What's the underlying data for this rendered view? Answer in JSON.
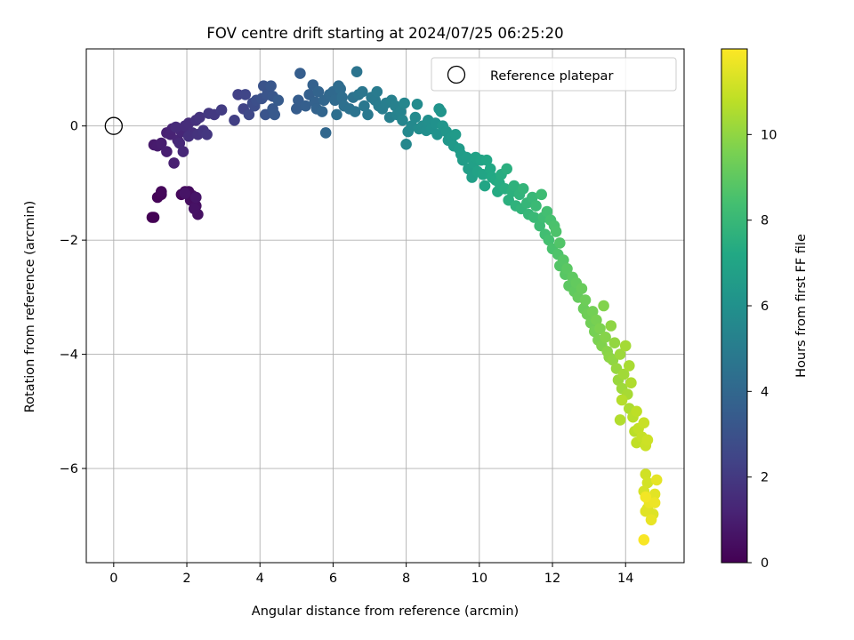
{
  "chart_data": {
    "type": "scatter",
    "title": "FOV centre drift starting at 2024/07/25 06:25:20",
    "xlabel": "Angular distance from reference (arcmin)",
    "ylabel": "Rotation from reference (arcmin)",
    "xlim": [
      -0.75,
      15.6
    ],
    "ylim": [
      -7.65,
      1.35
    ],
    "xticks": [
      0,
      2,
      4,
      6,
      8,
      10,
      12,
      14
    ],
    "yticks": [
      0,
      -2,
      -4,
      -6
    ],
    "xtick_labels": [
      "0",
      "2",
      "4",
      "6",
      "8",
      "10",
      "12",
      "14"
    ],
    "ytick_labels": [
      "0",
      "−2",
      "−4",
      "−6"
    ],
    "grid": true,
    "legend": {
      "placement": "top-right",
      "entries": [
        "Reference platepar"
      ]
    },
    "colormap": "viridis",
    "colors": {
      "vmin_color": "#440154",
      "vmax_color": "#fde725",
      "reference_marker": "#000000"
    },
    "reference": {
      "x": 0,
      "y": 0,
      "label": "Reference platepar"
    },
    "colorbar": {
      "label": "Hours from first FF file",
      "range": [
        0,
        12
      ],
      "ticks": [
        0,
        2,
        4,
        6,
        8,
        10
      ],
      "tick_labels": [
        "0",
        "2",
        "4",
        "6",
        "8",
        "10"
      ]
    },
    "series": [
      {
        "color_by": "Hours from first FF file",
        "points": [
          [
            1.05,
            -1.6,
            0.0
          ],
          [
            1.1,
            -1.6,
            0.05
          ],
          [
            1.2,
            -1.25,
            0.1
          ],
          [
            1.3,
            -1.2,
            0.15
          ],
          [
            1.3,
            -1.15,
            0.2
          ],
          [
            1.85,
            -1.2,
            0.25
          ],
          [
            1.95,
            -1.15,
            0.3
          ],
          [
            2.05,
            -1.15,
            0.35
          ],
          [
            2.15,
            -1.22,
            0.4
          ],
          [
            2.1,
            -1.3,
            0.45
          ],
          [
            2.25,
            -1.4,
            0.5
          ],
          [
            2.3,
            -1.55,
            0.55
          ],
          [
            2.2,
            -1.45,
            0.6
          ],
          [
            1.95,
            -1.18,
            0.65
          ],
          [
            2.25,
            -1.25,
            0.7
          ],
          [
            1.1,
            -0.33,
            0.85
          ],
          [
            1.2,
            -0.35,
            0.9
          ],
          [
            1.3,
            -0.3,
            0.95
          ],
          [
            1.45,
            -0.45,
            1.0
          ],
          [
            1.65,
            -0.65,
            1.05
          ],
          [
            1.45,
            -0.12,
            1.1
          ],
          [
            1.55,
            -0.15,
            1.15
          ],
          [
            1.6,
            -0.05,
            1.2
          ],
          [
            1.75,
            -0.25,
            1.25
          ],
          [
            1.85,
            -0.1,
            1.3
          ],
          [
            1.9,
            -0.45,
            1.35
          ],
          [
            1.8,
            -0.3,
            1.4
          ],
          [
            1.7,
            -0.02,
            1.45
          ],
          [
            1.95,
            0.0,
            1.5
          ],
          [
            2.05,
            0.05,
            1.55
          ],
          [
            2.15,
            -0.12,
            1.6
          ],
          [
            2.05,
            -0.18,
            1.65
          ],
          [
            2.25,
            0.1,
            1.7
          ],
          [
            2.3,
            -0.15,
            1.75
          ],
          [
            2.35,
            0.15,
            1.8
          ],
          [
            2.45,
            -0.08,
            1.85
          ],
          [
            2.55,
            -0.15,
            1.9
          ],
          [
            2.6,
            0.22,
            1.95
          ],
          [
            2.75,
            0.2,
            2.0
          ],
          [
            2.95,
            0.28,
            2.1
          ],
          [
            3.3,
            0.1,
            2.2
          ],
          [
            3.4,
            0.55,
            2.3
          ],
          [
            3.55,
            0.3,
            2.4
          ],
          [
            3.6,
            0.55,
            2.5
          ],
          [
            3.7,
            0.2,
            2.6
          ],
          [
            3.8,
            0.4,
            2.7
          ],
          [
            3.85,
            0.35,
            2.8
          ],
          [
            3.9,
            0.45,
            2.9
          ],
          [
            4.05,
            0.48,
            3.0
          ],
          [
            4.1,
            0.7,
            3.05
          ],
          [
            4.15,
            0.2,
            3.1
          ],
          [
            4.2,
            0.55,
            3.15
          ],
          [
            4.3,
            0.7,
            3.2
          ],
          [
            4.35,
            0.52,
            3.25
          ],
          [
            4.35,
            0.3,
            3.3
          ],
          [
            4.4,
            0.2,
            3.35
          ],
          [
            4.5,
            0.45,
            3.4
          ],
          [
            5.0,
            0.3,
            3.45
          ],
          [
            5.05,
            0.45,
            3.5
          ],
          [
            5.1,
            0.92,
            3.55
          ],
          [
            5.25,
            0.35,
            3.6
          ],
          [
            5.35,
            0.55,
            3.65
          ],
          [
            5.45,
            0.72,
            3.7
          ],
          [
            5.5,
            0.42,
            3.75
          ],
          [
            5.55,
            0.3,
            3.8
          ],
          [
            5.6,
            0.6,
            3.85
          ],
          [
            5.7,
            0.25,
            3.9
          ],
          [
            5.75,
            0.45,
            3.95
          ],
          [
            5.8,
            -0.12,
            4.0
          ],
          [
            5.9,
            0.55,
            4.05
          ],
          [
            6.0,
            0.6,
            4.1
          ],
          [
            6.05,
            0.45,
            4.15
          ],
          [
            6.15,
            0.7,
            4.2
          ],
          [
            6.2,
            0.65,
            4.25
          ],
          [
            6.25,
            0.5,
            4.3
          ],
          [
            6.1,
            0.2,
            4.35
          ],
          [
            6.3,
            0.35,
            4.4
          ],
          [
            6.45,
            0.3,
            4.45
          ],
          [
            6.55,
            0.5,
            4.5
          ],
          [
            6.6,
            0.25,
            4.55
          ],
          [
            6.65,
            0.95,
            4.6
          ],
          [
            6.7,
            0.55,
            4.65
          ],
          [
            6.8,
            0.6,
            4.7
          ],
          [
            6.85,
            0.35,
            4.75
          ],
          [
            6.95,
            0.2,
            4.8
          ],
          [
            7.05,
            0.5,
            4.85
          ],
          [
            7.15,
            0.45,
            4.9
          ],
          [
            7.2,
            0.6,
            4.95
          ],
          [
            7.25,
            0.35,
            5.0
          ],
          [
            7.35,
            0.3,
            5.05
          ],
          [
            7.45,
            0.4,
            5.1
          ],
          [
            7.55,
            0.15,
            5.15
          ],
          [
            7.6,
            0.45,
            5.2
          ],
          [
            7.7,
            0.35,
            5.25
          ],
          [
            7.75,
            0.2,
            5.3
          ],
          [
            7.85,
            0.25,
            5.35
          ],
          [
            7.9,
            0.1,
            5.4
          ],
          [
            7.95,
            0.4,
            5.45
          ],
          [
            8.0,
            -0.32,
            5.5
          ],
          [
            8.05,
            -0.1,
            5.55
          ],
          [
            8.15,
            0.0,
            5.6
          ],
          [
            8.25,
            0.15,
            5.65
          ],
          [
            8.3,
            0.38,
            5.7
          ],
          [
            8.35,
            -0.05,
            5.75
          ],
          [
            8.45,
            0.0,
            5.8
          ],
          [
            8.55,
            -0.08,
            5.85
          ],
          [
            8.6,
            0.1,
            5.9
          ],
          [
            8.7,
            -0.05,
            5.95
          ],
          [
            8.8,
            0.05,
            6.0
          ],
          [
            8.85,
            -0.15,
            6.05
          ],
          [
            8.9,
            0.3,
            6.1
          ],
          [
            8.95,
            0.25,
            6.15
          ],
          [
            9.0,
            0.0,
            6.2
          ],
          [
            9.1,
            -0.1,
            6.25
          ],
          [
            9.15,
            -0.25,
            6.3
          ],
          [
            9.25,
            -0.2,
            6.35
          ],
          [
            9.3,
            -0.35,
            6.4
          ],
          [
            9.35,
            -0.15,
            6.45
          ],
          [
            9.45,
            -0.4,
            6.5
          ],
          [
            9.5,
            -0.5,
            6.55
          ],
          [
            9.55,
            -0.6,
            6.6
          ],
          [
            9.65,
            -0.55,
            6.65
          ],
          [
            9.7,
            -0.75,
            6.7
          ],
          [
            9.8,
            -0.9,
            6.75
          ],
          [
            9.85,
            -0.65,
            6.8
          ],
          [
            9.9,
            -0.55,
            6.85
          ],
          [
            9.95,
            -0.8,
            6.9
          ],
          [
            10.05,
            -0.6,
            6.95
          ],
          [
            10.1,
            -0.85,
            7.0
          ],
          [
            10.15,
            -1.05,
            7.05
          ],
          [
            10.2,
            -0.6,
            7.1
          ],
          [
            10.3,
            -0.75,
            7.15
          ],
          [
            10.35,
            -0.9,
            7.2
          ],
          [
            10.45,
            -0.95,
            7.25
          ],
          [
            10.5,
            -1.15,
            7.3
          ],
          [
            10.55,
            -1.0,
            7.35
          ],
          [
            10.6,
            -0.85,
            7.4
          ],
          [
            10.7,
            -1.1,
            7.45
          ],
          [
            10.75,
            -0.75,
            7.5
          ],
          [
            10.8,
            -1.3,
            7.55
          ],
          [
            10.9,
            -1.15,
            7.6
          ],
          [
            10.95,
            -1.05,
            7.65
          ],
          [
            11.0,
            -1.4,
            7.7
          ],
          [
            11.1,
            -1.2,
            7.75
          ],
          [
            11.15,
            -1.45,
            7.8
          ],
          [
            11.2,
            -1.1,
            7.85
          ],
          [
            11.3,
            -1.35,
            7.9
          ],
          [
            11.35,
            -1.55,
            7.95
          ],
          [
            11.45,
            -1.25,
            8.0
          ],
          [
            11.5,
            -1.6,
            8.05
          ],
          [
            11.55,
            -1.4,
            8.1
          ],
          [
            11.65,
            -1.75,
            8.15
          ],
          [
            11.7,
            -1.2,
            8.2
          ],
          [
            11.75,
            -1.6,
            8.25
          ],
          [
            11.8,
            -1.9,
            8.3
          ],
          [
            11.85,
            -1.5,
            8.35
          ],
          [
            11.9,
            -2.0,
            8.4
          ],
          [
            11.95,
            -1.65,
            8.45
          ],
          [
            12.0,
            -2.15,
            8.5
          ],
          [
            12.05,
            -1.75,
            8.55
          ],
          [
            12.1,
            -1.85,
            8.6
          ],
          [
            12.15,
            -2.25,
            8.65
          ],
          [
            12.2,
            -2.05,
            8.7
          ],
          [
            12.2,
            -2.45,
            8.75
          ],
          [
            12.3,
            -2.35,
            8.8
          ],
          [
            12.35,
            -2.6,
            8.85
          ],
          [
            12.4,
            -2.5,
            8.9
          ],
          [
            12.45,
            -2.8,
            8.95
          ],
          [
            12.55,
            -2.65,
            9.0
          ],
          [
            12.6,
            -2.9,
            9.05
          ],
          [
            12.65,
            -2.75,
            9.1
          ],
          [
            12.7,
            -3.0,
            9.15
          ],
          [
            12.8,
            -2.85,
            9.2
          ],
          [
            12.85,
            -3.2,
            9.25
          ],
          [
            12.9,
            -3.05,
            9.3
          ],
          [
            12.95,
            -3.3,
            9.35
          ],
          [
            13.05,
            -3.45,
            9.4
          ],
          [
            13.1,
            -3.25,
            9.45
          ],
          [
            13.15,
            -3.6,
            9.5
          ],
          [
            13.2,
            -3.4,
            9.55
          ],
          [
            13.25,
            -3.75,
            9.6
          ],
          [
            13.3,
            -3.55,
            9.65
          ],
          [
            13.35,
            -3.85,
            9.7
          ],
          [
            13.4,
            -3.15,
            9.75
          ],
          [
            13.45,
            -3.7,
            9.8
          ],
          [
            13.5,
            -3.95,
            9.85
          ],
          [
            13.55,
            -4.05,
            9.9
          ],
          [
            13.6,
            -3.5,
            9.95
          ],
          [
            13.65,
            -4.1,
            10.0
          ],
          [
            13.7,
            -3.8,
            10.05
          ],
          [
            13.75,
            -4.25,
            10.1
          ],
          [
            13.8,
            -4.45,
            10.15
          ],
          [
            13.85,
            -4.0,
            10.2
          ],
          [
            13.9,
            -4.6,
            10.25
          ],
          [
            13.95,
            -4.35,
            10.3
          ],
          [
            14.0,
            -3.85,
            10.35
          ],
          [
            14.05,
            -4.7,
            10.4
          ],
          [
            14.1,
            -4.2,
            10.45
          ],
          [
            14.1,
            -4.95,
            10.5
          ],
          [
            14.15,
            -4.5,
            10.55
          ],
          [
            13.85,
            -5.15,
            10.6
          ],
          [
            13.9,
            -4.8,
            10.65
          ],
          [
            14.2,
            -5.1,
            10.7
          ],
          [
            14.25,
            -5.35,
            10.75
          ],
          [
            14.3,
            -5.0,
            10.8
          ],
          [
            14.3,
            -5.55,
            10.85
          ],
          [
            14.35,
            -5.3,
            10.9
          ],
          [
            14.45,
            -5.45,
            10.95
          ],
          [
            14.5,
            -5.2,
            11.0
          ],
          [
            14.55,
            -5.6,
            11.05
          ],
          [
            14.6,
            -5.5,
            11.1
          ],
          [
            14.55,
            -6.1,
            11.15
          ],
          [
            14.6,
            -6.25,
            11.2
          ],
          [
            14.5,
            -6.4,
            11.25
          ],
          [
            14.7,
            -6.55,
            11.3
          ],
          [
            14.6,
            -6.7,
            11.35
          ],
          [
            14.75,
            -6.8,
            11.4
          ],
          [
            14.55,
            -6.75,
            11.45
          ],
          [
            14.8,
            -6.45,
            11.5
          ],
          [
            14.85,
            -6.2,
            11.55
          ],
          [
            14.7,
            -6.9,
            11.6
          ],
          [
            14.65,
            -6.6,
            11.65
          ],
          [
            14.8,
            -6.6,
            11.7
          ],
          [
            14.55,
            -6.5,
            11.8
          ],
          [
            14.5,
            -7.25,
            11.9
          ]
        ]
      }
    ]
  }
}
